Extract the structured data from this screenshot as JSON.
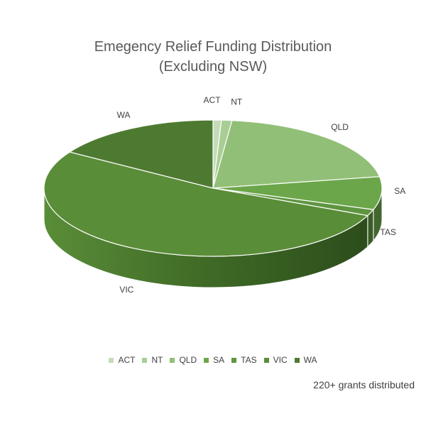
{
  "chart_data": {
    "type": "pie",
    "title_line1": "Emegency Relief Funding Distribution",
    "title_line2": "(Excluding NSW)",
    "categories": [
      "ACT",
      "NT",
      "QLD",
      "SA",
      "TAS",
      "VIC",
      "WA"
    ],
    "values": [
      0.8,
      1.0,
      20.5,
      7.8,
      1.5,
      52.3,
      16.1
    ],
    "colors": [
      "#c5dbb8",
      "#a9ce95",
      "#92bf77",
      "#6ba64a",
      "#5f9540",
      "#5a8d38",
      "#4d7a30"
    ],
    "legend_position": "bottom",
    "three_d": true
  },
  "footnote": "220+ grants distributed"
}
